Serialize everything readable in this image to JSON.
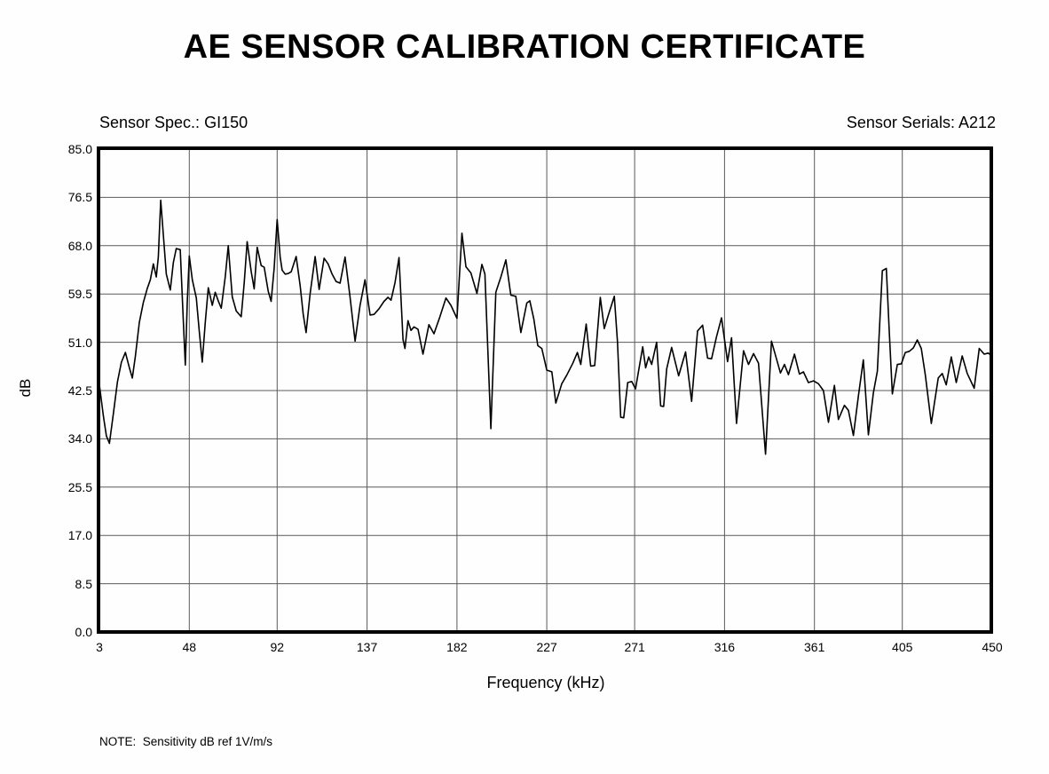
{
  "title": "AE SENSOR CALIBRATION CERTIFICATE",
  "header": {
    "sensor_spec": "Sensor Spec.: GI150",
    "sensor_serials": "Sensor Serials: A212"
  },
  "note": "NOTE:  Sensitivity dB ref 1V/m/s",
  "colors": {
    "curve": "#000000",
    "grid": "#5a5a5a",
    "border": "#000000",
    "background": "#fefefe"
  },
  "chart_data": {
    "type": "line",
    "title": "AE SENSOR CALIBRATION CERTIFICATE",
    "xlabel": "Frequency (kHz)",
    "ylabel": "dB",
    "xlim": [
      3,
      450
    ],
    "ylim": [
      0,
      85
    ],
    "grid": true,
    "legend": "none",
    "x_ticks": [
      3,
      48,
      92,
      137,
      182,
      227,
      271,
      316,
      361,
      405,
      450
    ],
    "x_tick_labels": [
      "3",
      "48",
      "92",
      "137",
      "182",
      "227",
      "271",
      "316",
      "361",
      "405",
      "450"
    ],
    "y_ticks": [
      0,
      8.5,
      17,
      25.5,
      34,
      42.5,
      51,
      59.5,
      68,
      76.5,
      85
    ],
    "y_tick_labels": [
      "0.0",
      "8.5",
      "17.0",
      "25.5",
      "34.0",
      "42.5",
      "51.0",
      "59.5",
      "68.0",
      "76.5",
      "85.0"
    ],
    "series": [
      {
        "name": "Sensitivity (dB ref 1V/m/s)",
        "points": [
          [
            3,
            43.5
          ],
          [
            5,
            38
          ],
          [
            6.5,
            34.5
          ],
          [
            8,
            33.2
          ],
          [
            10,
            38.5
          ],
          [
            12,
            44
          ],
          [
            14,
            47.5
          ],
          [
            16,
            49.2
          ],
          [
            18,
            46.5
          ],
          [
            19.5,
            44.7
          ],
          [
            21,
            48.5
          ],
          [
            23,
            54.5
          ],
          [
            25,
            58
          ],
          [
            27,
            60.5
          ],
          [
            28.5,
            62
          ],
          [
            30,
            64.8
          ],
          [
            31.5,
            62.5
          ],
          [
            32.5,
            66
          ],
          [
            33.7,
            76
          ],
          [
            35,
            70
          ],
          [
            36.5,
            63
          ],
          [
            38.5,
            60.2
          ],
          [
            40,
            65
          ],
          [
            41.5,
            67.5
          ],
          [
            43.5,
            67.3
          ],
          [
            45,
            55
          ],
          [
            46,
            47
          ],
          [
            47,
            58
          ],
          [
            48,
            66.2
          ],
          [
            49.5,
            62
          ],
          [
            51.5,
            58.8
          ],
          [
            53,
            53
          ],
          [
            54.5,
            47.5
          ],
          [
            56,
            54.5
          ],
          [
            57.5,
            60.6
          ],
          [
            59.5,
            57.5
          ],
          [
            61,
            59.8
          ],
          [
            62.5,
            58.3
          ],
          [
            64,
            57
          ],
          [
            66,
            62.5
          ],
          [
            67.5,
            68
          ],
          [
            69.5,
            59
          ],
          [
            71.5,
            56.5
          ],
          [
            74,
            55.5
          ],
          [
            75.5,
            61.5
          ],
          [
            77,
            68.7
          ],
          [
            79,
            63.5
          ],
          [
            80.5,
            60.4
          ],
          [
            82,
            67.7
          ],
          [
            84,
            64.5
          ],
          [
            85.5,
            64.2
          ],
          [
            87.5,
            60
          ],
          [
            89,
            58.2
          ],
          [
            90.5,
            64
          ],
          [
            92,
            72.6
          ],
          [
            93.5,
            66
          ],
          [
            94.5,
            63.7
          ],
          [
            96,
            63
          ],
          [
            97.5,
            63.1
          ],
          [
            99,
            63.4
          ],
          [
            101.5,
            66.1
          ],
          [
            103.5,
            61
          ],
          [
            105,
            56
          ],
          [
            106.5,
            52.7
          ],
          [
            108.5,
            59.5
          ],
          [
            111,
            66.1
          ],
          [
            113,
            60.3
          ],
          [
            115.5,
            65.8
          ],
          [
            117.5,
            64.8
          ],
          [
            119.5,
            63
          ],
          [
            121.5,
            61.7
          ],
          [
            123.5,
            61.4
          ],
          [
            126,
            66
          ],
          [
            128.5,
            59
          ],
          [
            131,
            51.2
          ],
          [
            133.5,
            57.5
          ],
          [
            136,
            62
          ],
          [
            138.5,
            55.8
          ],
          [
            140.5,
            55.9
          ],
          [
            143,
            56.9
          ],
          [
            145.5,
            58.2
          ],
          [
            147.5,
            58.9
          ],
          [
            149,
            58.4
          ],
          [
            151,
            61.5
          ],
          [
            153,
            65.9
          ],
          [
            155,
            51.5
          ],
          [
            156,
            49.9
          ],
          [
            157.5,
            54.8
          ],
          [
            159,
            53.1
          ],
          [
            160.5,
            53.7
          ],
          [
            162.5,
            53.3
          ],
          [
            165,
            48.9
          ],
          [
            168,
            54.1
          ],
          [
            170.5,
            52.5
          ],
          [
            173.5,
            55.5
          ],
          [
            176.5,
            58.8
          ],
          [
            179,
            57.5
          ],
          [
            182,
            55.2
          ],
          [
            184.5,
            70.2
          ],
          [
            186.5,
            64.3
          ],
          [
            189,
            63.2
          ],
          [
            192,
            59.6
          ],
          [
            194.5,
            64.7
          ],
          [
            196,
            63
          ],
          [
            199,
            35.8
          ],
          [
            201.5,
            59.8
          ],
          [
            204,
            62.5
          ],
          [
            206.5,
            65.5
          ],
          [
            209,
            59.3
          ],
          [
            211.5,
            59.1
          ],
          [
            214,
            52.7
          ],
          [
            217,
            57.9
          ],
          [
            218.5,
            58.3
          ],
          [
            220.5,
            55.1
          ],
          [
            222.5,
            50.4
          ],
          [
            224.5,
            49.9
          ],
          [
            227,
            46.1
          ],
          [
            229.5,
            45.8
          ],
          [
            231.5,
            40.3
          ],
          [
            234.5,
            43.7
          ],
          [
            237,
            45.2
          ],
          [
            240,
            47.3
          ],
          [
            242.3,
            49.2
          ],
          [
            244,
            47.1
          ],
          [
            246.7,
            54.2
          ],
          [
            249,
            46.8
          ],
          [
            251,
            46.9
          ],
          [
            253.8,
            58.9
          ],
          [
            255.8,
            53.4
          ],
          [
            258,
            56
          ],
          [
            260.8,
            59.1
          ],
          [
            262.4,
            51
          ],
          [
            264,
            37.8
          ],
          [
            265.5,
            37.7
          ],
          [
            267.5,
            43.9
          ],
          [
            269.5,
            44.1
          ],
          [
            271.4,
            42.8
          ],
          [
            275,
            50.2
          ],
          [
            276.5,
            46.5
          ],
          [
            278,
            48.4
          ],
          [
            279.5,
            47.1
          ],
          [
            282,
            51
          ],
          [
            284,
            39.8
          ],
          [
            285.5,
            39.7
          ],
          [
            287,
            46.3
          ],
          [
            289.5,
            50.1
          ],
          [
            293,
            45.1
          ],
          [
            296.5,
            49.3
          ],
          [
            299.5,
            40.6
          ],
          [
            302.5,
            53
          ],
          [
            305,
            54
          ],
          [
            307.5,
            48.2
          ],
          [
            309.5,
            48.1
          ],
          [
            312,
            52
          ],
          [
            314.5,
            55.3
          ],
          [
            317.5,
            47.6
          ],
          [
            319.5,
            51.8
          ],
          [
            322,
            36.7
          ],
          [
            325.5,
            49.5
          ],
          [
            328,
            47.1
          ],
          [
            330.5,
            49
          ],
          [
            333,
            47.3
          ],
          [
            336.5,
            31.3
          ],
          [
            339.5,
            51.2
          ],
          [
            342,
            48.1
          ],
          [
            344,
            45.6
          ],
          [
            346,
            47.1
          ],
          [
            348,
            45.3
          ],
          [
            351,
            48.9
          ],
          [
            353.5,
            45.4
          ],
          [
            355.5,
            45.8
          ],
          [
            358,
            43.9
          ],
          [
            360.5,
            44.2
          ],
          [
            363,
            43.7
          ],
          [
            365.5,
            42.5
          ],
          [
            368,
            36.9
          ],
          [
            371,
            43.4
          ],
          [
            373,
            37.4
          ],
          [
            376,
            39.9
          ],
          [
            378,
            39
          ],
          [
            380.5,
            34.6
          ],
          [
            383,
            41.5
          ],
          [
            385.5,
            47.9
          ],
          [
            388,
            34.7
          ],
          [
            390.5,
            42.1
          ],
          [
            392.5,
            45.9
          ],
          [
            395,
            63.6
          ],
          [
            397,
            64
          ],
          [
            398.5,
            52.6
          ],
          [
            400,
            41.9
          ],
          [
            402.5,
            47.1
          ],
          [
            404.5,
            47.2
          ],
          [
            406.5,
            49.2
          ],
          [
            408.5,
            49.4
          ],
          [
            410.5,
            50
          ],
          [
            412.5,
            51.4
          ],
          [
            414.5,
            49.9
          ],
          [
            416.5,
            45.3
          ],
          [
            419.5,
            36.7
          ],
          [
            423,
            44.7
          ],
          [
            425,
            45.5
          ],
          [
            427,
            43.5
          ],
          [
            429.5,
            48.4
          ],
          [
            432,
            43.9
          ],
          [
            435,
            48.6
          ],
          [
            437.5,
            45.5
          ],
          [
            441,
            42.9
          ],
          [
            443.5,
            49.9
          ],
          [
            446,
            48.9
          ],
          [
            448,
            49.1
          ],
          [
            450,
            48.6
          ]
        ]
      }
    ]
  }
}
